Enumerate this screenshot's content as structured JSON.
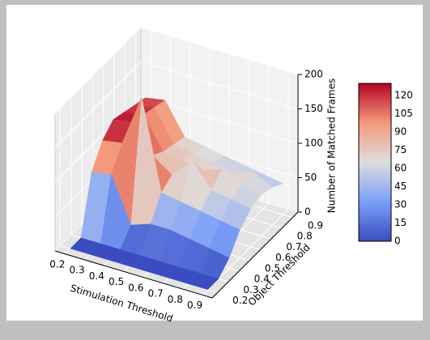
{
  "chart_data": {
    "type": "surface",
    "x_label": "Stimulation Threshold",
    "y_label": "Object Threshold",
    "z_label": "Number of Matched Frames",
    "x": [
      0.2,
      0.3,
      0.4,
      0.5,
      0.6,
      0.7,
      0.8,
      0.9
    ],
    "y": [
      0.2,
      0.3,
      0.4,
      0.5,
      0.6,
      0.7,
      0.8,
      0.9
    ],
    "z": [
      [
        0,
        0,
        0,
        0,
        0,
        0,
        0,
        0
      ],
      [
        0,
        0,
        0,
        0,
        0,
        0,
        0,
        0
      ],
      [
        80,
        85,
        20,
        30,
        30,
        25,
        20,
        15
      ],
      [
        110,
        115,
        190,
        60,
        55,
        50,
        45,
        40
      ],
      [
        125,
        130,
        90,
        70,
        100,
        65,
        60,
        55
      ],
      [
        120,
        125,
        80,
        75,
        70,
        80,
        65,
        60
      ],
      [
        115,
        120,
        75,
        70,
        65,
        60,
        70,
        55
      ],
      [
        110,
        115,
        70,
        65,
        60,
        55,
        50,
        45
      ]
    ],
    "xlim": [
      0.15,
      0.95
    ],
    "ylim": [
      0.15,
      0.95
    ],
    "zlim": [
      0,
      200
    ],
    "xticks": [
      0.2,
      0.3,
      0.4,
      0.5,
      0.6,
      0.7,
      0.8,
      0.9
    ],
    "yticks": [
      0.2,
      0.3,
      0.4,
      0.5,
      0.6,
      0.7,
      0.8,
      0.9
    ],
    "zticks": [
      0,
      50,
      100,
      150,
      200
    ],
    "colormap": "coolwarm",
    "clim": [
      0,
      130
    ],
    "colorbar_ticks": [
      0,
      15,
      30,
      45,
      60,
      75,
      90,
      105,
      120
    ],
    "grid": true
  }
}
